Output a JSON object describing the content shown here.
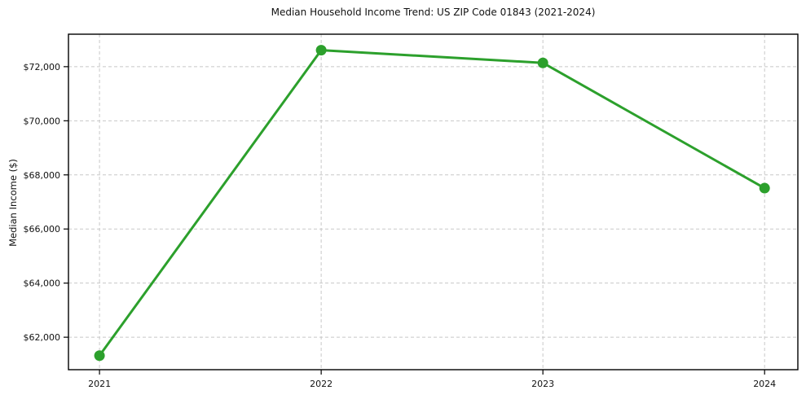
{
  "chart_data": {
    "type": "line",
    "title": "Median Household Income Trend: US ZIP Code 01843 (2021-2024)",
    "xlabel": "",
    "ylabel": "Median Income ($)",
    "x": [
      2021,
      2022,
      2023,
      2024
    ],
    "x_tick_labels": [
      "2021",
      "2022",
      "2023",
      "2024"
    ],
    "series": [
      {
        "name": "Median Household Income",
        "values": [
          61320,
          72610,
          72140,
          67510
        ],
        "value_labels": [
          "$61,320",
          "$72,610",
          "$72,140",
          "$67,510"
        ],
        "color": "#2ca02c",
        "marker": "circle"
      }
    ],
    "y_ticks": [
      62000,
      64000,
      66000,
      68000,
      70000,
      72000
    ],
    "y_tick_labels": [
      "$62,000",
      "$64,000",
      "$66,000",
      "$68,000",
      "$70,000",
      "$72,000"
    ],
    "ylim": [
      60800,
      73200
    ],
    "xlim": [
      2020.86,
      2024.15
    ],
    "grid": true,
    "grid_style": "dashed",
    "grid_color": "#c8c8c8",
    "axis_color": "#000000",
    "legend_position": "none",
    "background_color": "#ffffff"
  }
}
